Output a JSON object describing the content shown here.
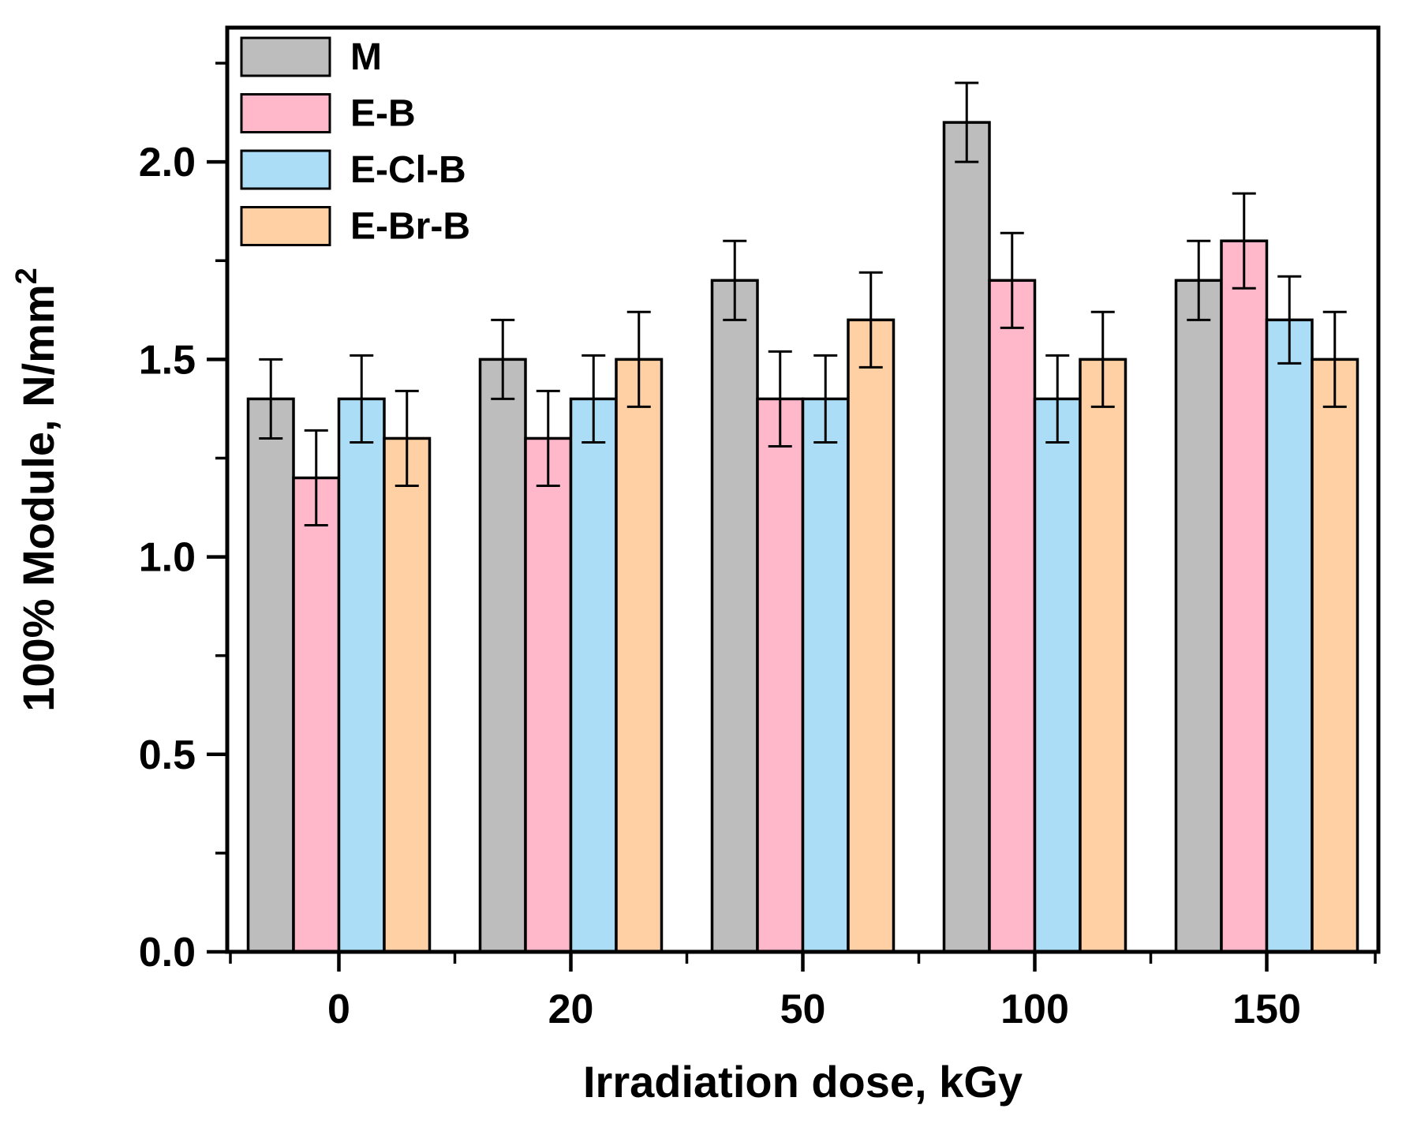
{
  "figure": {
    "kind": "grouped-bar-chart-with-error-bars",
    "background_color": "#ffffff",
    "frame_color": "#000000"
  },
  "chart_data": {
    "type": "bar",
    "title": "",
    "xlabel": "Irradiation dose, kGy",
    "ylabel": "100% Module, N/mm",
    "ylabel_superscript": "2",
    "categories": [
      "0",
      "20",
      "50",
      "100",
      "150"
    ],
    "series": [
      {
        "name": "M",
        "color": "#BDBDBD",
        "values": [
          1.4,
          1.5,
          1.7,
          2.1,
          1.7
        ],
        "errors": [
          0.1,
          0.1,
          0.1,
          0.1,
          0.1
        ]
      },
      {
        "name": "E-B",
        "color": "#FFB7CA",
        "values": [
          1.2,
          1.3,
          1.4,
          1.7,
          1.8
        ],
        "errors": [
          0.12,
          0.12,
          0.12,
          0.12,
          0.12
        ]
      },
      {
        "name": "E-Cl-B",
        "color": "#ABDDF7",
        "values": [
          1.4,
          1.4,
          1.4,
          1.4,
          1.6
        ],
        "errors": [
          0.11,
          0.11,
          0.11,
          0.11,
          0.11
        ]
      },
      {
        "name": "E-Br-B",
        "color": "#FFD0A3",
        "values": [
          1.3,
          1.5,
          1.6,
          1.5,
          1.5
        ],
        "errors": [
          0.12,
          0.12,
          0.12,
          0.12,
          0.12
        ]
      }
    ],
    "ylim": [
      0,
      2.34
    ],
    "y_major_ticks": [
      0.0,
      0.5,
      1.0,
      1.5,
      2.0
    ],
    "y_tick_labels": [
      "0.0",
      "0.5",
      "1.0",
      "1.5",
      "2.0"
    ],
    "y_minor_ticks": [
      0.25,
      0.75,
      1.25,
      1.75,
      2.25
    ],
    "x_minor_ticks_between_groups": true,
    "grid": false,
    "legend_position": "top-left",
    "bar_edge_color": "#000000",
    "error_bar_color": "#000000"
  }
}
